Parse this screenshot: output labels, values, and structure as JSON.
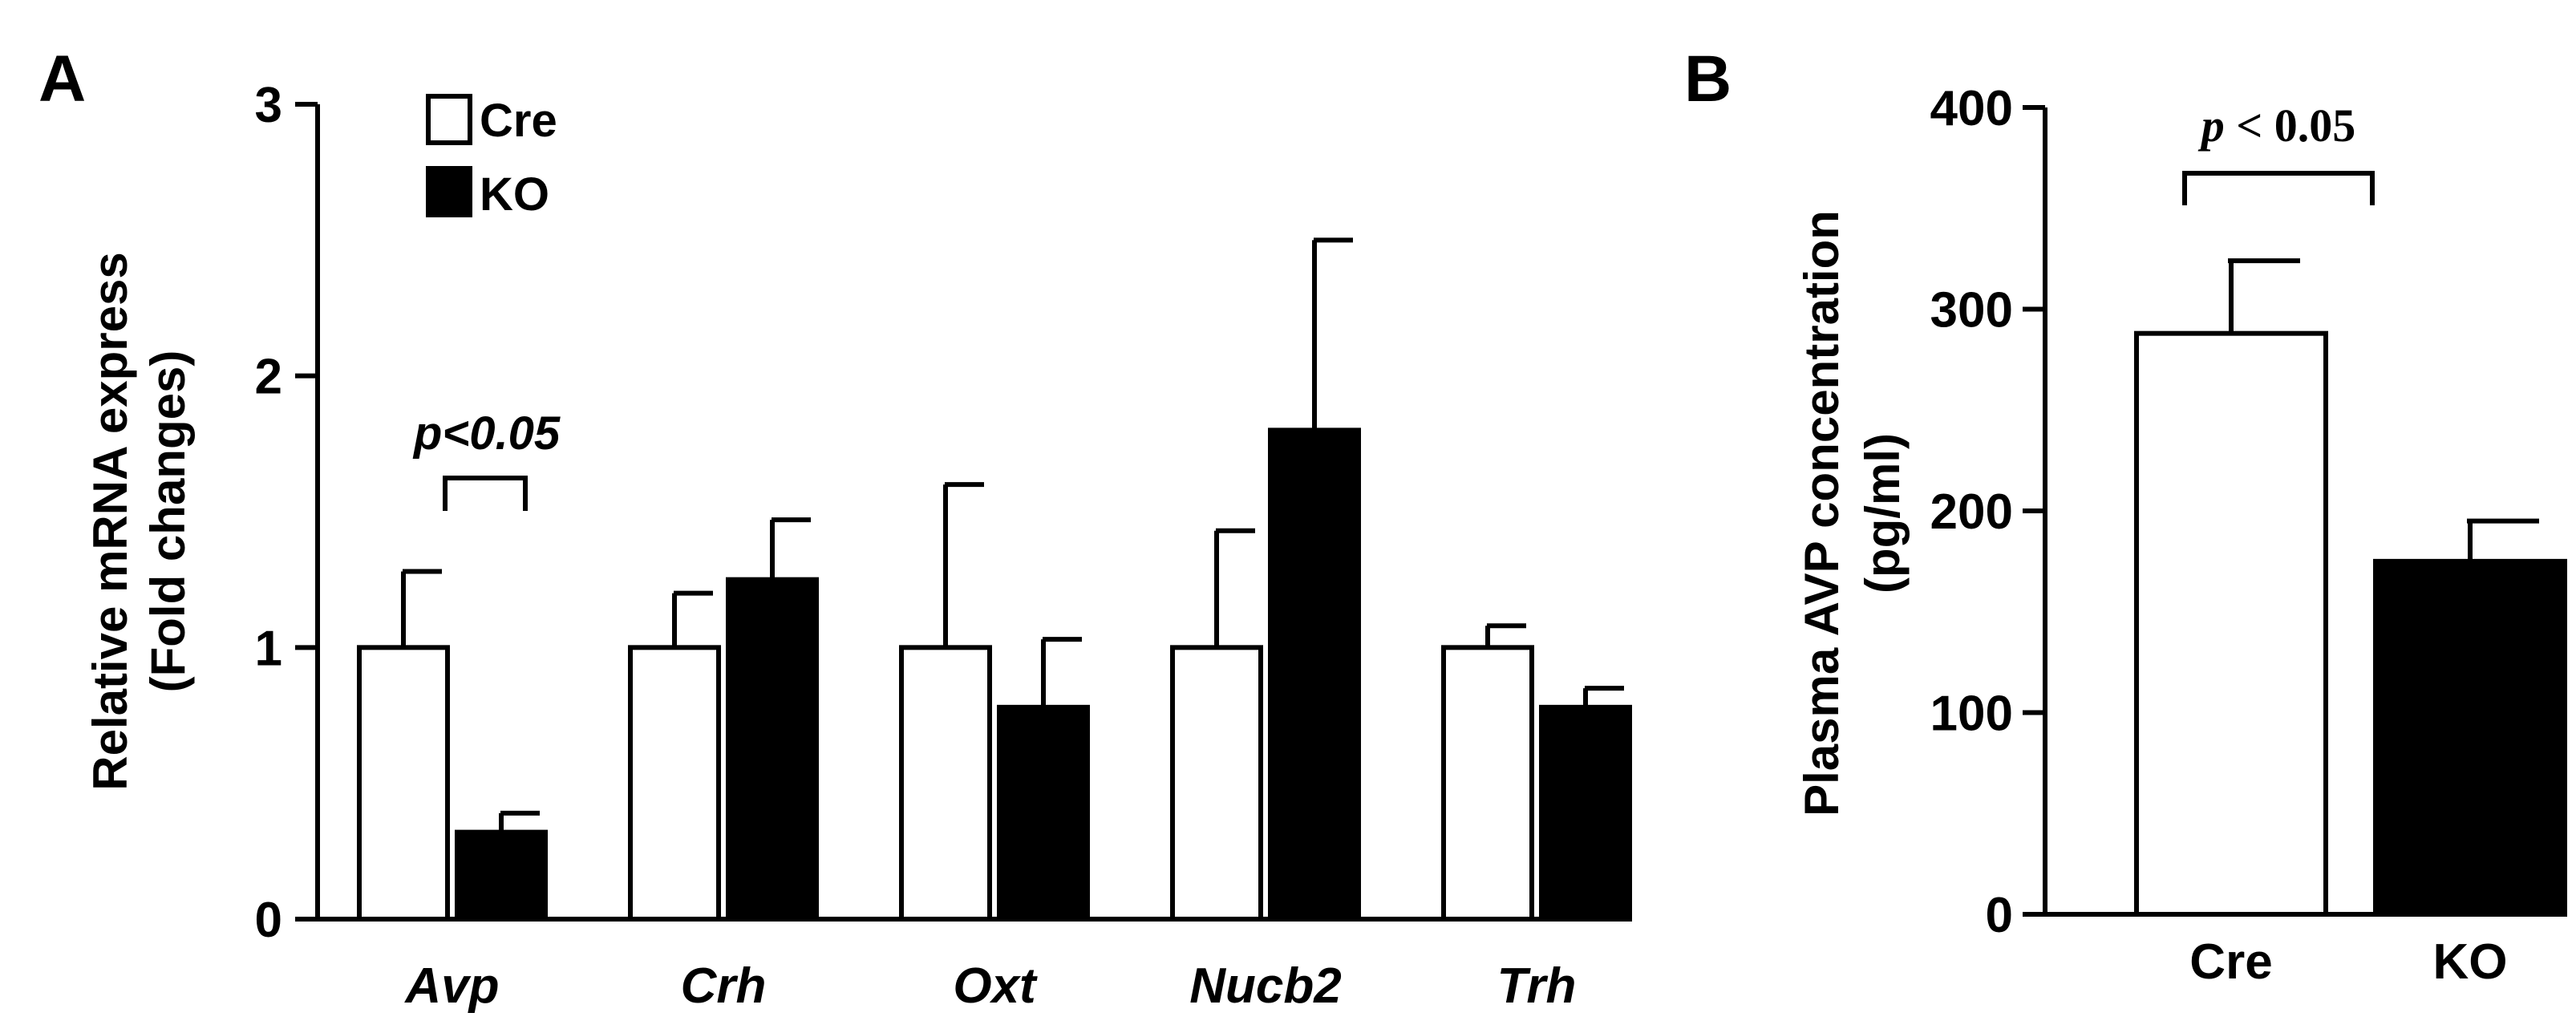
{
  "chart_data": [
    {
      "panel": "A",
      "type": "bar",
      "title": "",
      "xlabel": "",
      "ylabel": [
        "Relative mRNA express",
        "(Fold changes)"
      ],
      "ylim": [
        0,
        3
      ],
      "yticks": [
        0,
        1,
        2,
        3
      ],
      "categories": [
        "Avp",
        "Crh",
        "Oxt",
        "Nucb2",
        "Trh"
      ],
      "series": [
        {
          "name": "Cre",
          "color": "#ffffff",
          "values": [
            1.0,
            1.0,
            1.0,
            1.0,
            1.0
          ],
          "errors": [
            0.28,
            0.2,
            0.6,
            0.43,
            0.08
          ]
        },
        {
          "name": "KO",
          "color": "#000000",
          "values": [
            0.32,
            1.25,
            0.78,
            1.8,
            0.78
          ],
          "errors": [
            0.07,
            0.22,
            0.25,
            0.7,
            0.07
          ]
        }
      ],
      "legend": {
        "position": "top-left",
        "entries": [
          "Cre",
          "KO"
        ]
      },
      "annotations": [
        {
          "text": "p<0.05",
          "category": "Avp"
        }
      ]
    },
    {
      "panel": "B",
      "type": "bar",
      "title": "",
      "xlabel": "",
      "ylabel": [
        "Plasma AVP concentration",
        "(pg/ml)"
      ],
      "ylim": [
        0,
        400
      ],
      "yticks": [
        0,
        100,
        200,
        300,
        400
      ],
      "categories": [
        "Cre",
        "KO"
      ],
      "values": [
        288,
        175
      ],
      "errors": [
        36,
        20
      ],
      "colors": [
        "#ffffff",
        "#000000"
      ],
      "annotations": [
        {
          "p": "p",
          "rest": " < 0.05"
        }
      ]
    }
  ]
}
